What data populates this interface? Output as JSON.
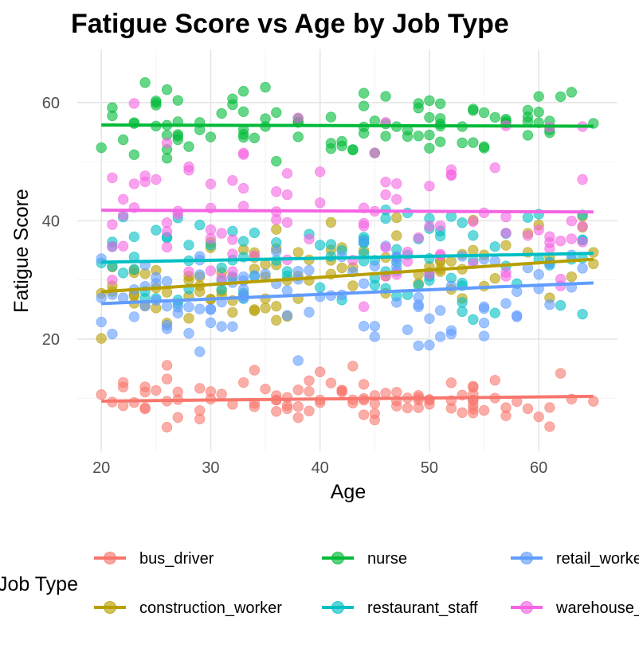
{
  "chart_data": {
    "type": "scatter",
    "title": "Fatigue Score vs Age by Job Type",
    "xlabel": "Age",
    "ylabel": "Fatigue Score",
    "xlim": [
      17.8,
      67.2
    ],
    "ylim": [
      1,
      69
    ],
    "x_ticks": [
      20,
      30,
      40,
      50,
      60
    ],
    "y_ticks": [
      20,
      40,
      60
    ],
    "grid": true,
    "legend": {
      "title": "Job Type",
      "position": "bottom",
      "order": [
        "bus_driver",
        "nurse",
        "retail_worker",
        "construction_worker",
        "restaurant_staff",
        "warehouse_worker"
      ]
    },
    "point_layer": {
      "x_min": 20,
      "x_max": 65,
      "points_per_series": 100
    },
    "series": [
      {
        "name": "bus_driver",
        "color": "#F8766D",
        "trend": {
          "x": [
            20,
            65
          ],
          "y": [
            9.5,
            10.3
          ]
        },
        "spread": 2.5
      },
      {
        "name": "construction_worker",
        "color": "#B79F00",
        "trend": {
          "x": [
            20,
            65
          ],
          "y": [
            28.0,
            33.5
          ]
        },
        "spread": 4.8
      },
      {
        "name": "nurse",
        "color": "#00BA38",
        "trend": {
          "x": [
            20,
            65
          ],
          "y": [
            56.2,
            56.0
          ]
        },
        "spread": 3.8
      },
      {
        "name": "restaurant_staff",
        "color": "#00BFC4",
        "trend": {
          "x": [
            20,
            65
          ],
          "y": [
            33.0,
            34.5
          ]
        },
        "spread": 6.0
      },
      {
        "name": "retail_worker",
        "color": "#619CFF",
        "trend": {
          "x": [
            20,
            65
          ],
          "y": [
            26.0,
            29.5
          ]
        },
        "spread": 6.0
      },
      {
        "name": "warehouse_worker",
        "color": "#F564E3",
        "trend": {
          "x": [
            20,
            65
          ],
          "y": [
            41.8,
            41.5
          ]
        },
        "spread": 9.0
      }
    ]
  }
}
